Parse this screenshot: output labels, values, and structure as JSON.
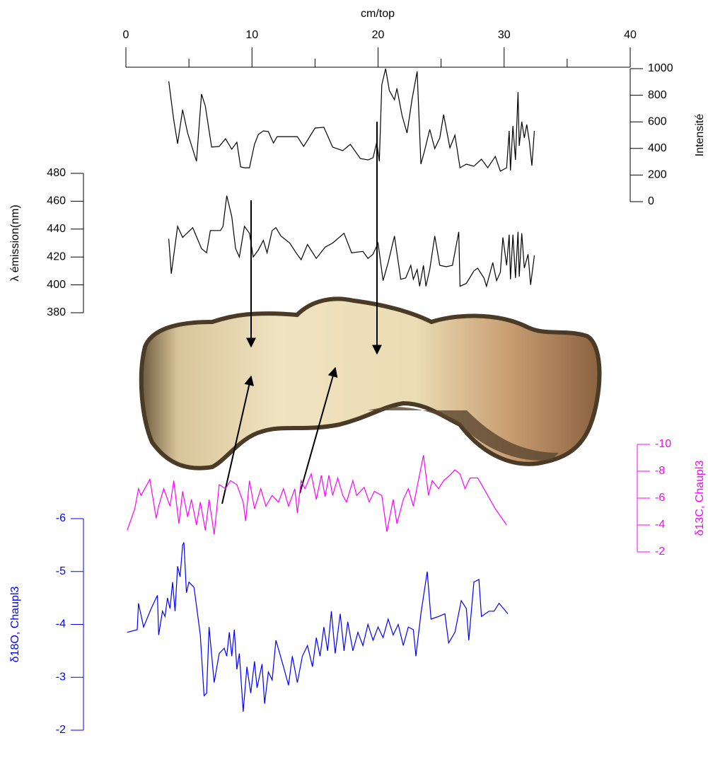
{
  "chart_data": [
    {
      "type": "line",
      "xlabel": "cm/top",
      "xlim": [
        0,
        40
      ],
      "xticks": [
        0,
        10,
        20,
        30,
        40
      ],
      "xminor": [
        5,
        15,
        25,
        35
      ],
      "ylabel": "Intensité",
      "y_axis_side": "right",
      "color": "#000000",
      "ylim": [
        0,
        1000
      ],
      "yticks": [
        0,
        200,
        400,
        600,
        800,
        1000
      ],
      "x": [
        3.4,
        3.8,
        4.1,
        4.5,
        4.9,
        5.6,
        6.0,
        6.3,
        6.8,
        7.4,
        7.9,
        8.4,
        8.8,
        9.1,
        9.4,
        9.8,
        10.2,
        10.5,
        10.9,
        11.3,
        11.7,
        12.0,
        13.0,
        13.6,
        14.1,
        15.0,
        15.7,
        16.4,
        17.2,
        17.8,
        18.6,
        19.2,
        19.6,
        19.9,
        20.1,
        20.3,
        20.6,
        20.9,
        21.3,
        21.5,
        21.9,
        22.3,
        22.7,
        23.1,
        23.4,
        23.7,
        24.1,
        24.5,
        24.9,
        25.2,
        25.7,
        26.1,
        26.5,
        27.0,
        27.6,
        28.2,
        28.7,
        29.3,
        29.7,
        30.2,
        30.4,
        30.5,
        30.7,
        30.9,
        31.1,
        31.2,
        31.4,
        31.6,
        31.8,
        32.0,
        32.2,
        32.4
      ],
      "values": [
        904,
        612,
        436,
        691,
        516,
        303,
        809,
        718,
        410,
        415,
        473,
        394,
        447,
        261,
        255,
        255,
        431,
        505,
        532,
        527,
        441,
        489,
        489,
        489,
        415,
        553,
        559,
        410,
        383,
        431,
        324,
        314,
        330,
        447,
        303,
        878,
        1000,
        835,
        766,
        851,
        649,
        516,
        771,
        979,
        282,
        388,
        543,
        399,
        479,
        654,
        404,
        500,
        255,
        282,
        266,
        319,
        255,
        340,
        229,
        255,
        532,
        234,
        569,
        314,
        824,
        420,
        601,
        479,
        580,
        452,
        271,
        532
      ]
    },
    {
      "type": "line",
      "ylabel": "λ émission(nm)",
      "y_axis_side": "left",
      "color": "#000000",
      "ylim": [
        380,
        480
      ],
      "yticks": [
        380,
        400,
        420,
        440,
        460,
        480
      ],
      "x": [
        3.4,
        3.6,
        4.1,
        4.5,
        5.3,
        6.0,
        6.4,
        6.7,
        7.1,
        7.5,
        7.7,
        8.0,
        8.4,
        8.7,
        9.0,
        9.4,
        9.8,
        10.1,
        10.5,
        10.9,
        11.2,
        11.6,
        11.9,
        12.3,
        13.0,
        13.5,
        13.9,
        14.4,
        15.1,
        15.8,
        16.4,
        17.3,
        17.9,
        18.8,
        19.2,
        19.6,
        20.0,
        20.4,
        20.8,
        21.3,
        21.8,
        22.2,
        22.6,
        22.8,
        23.1,
        23.3,
        23.6,
        23.8,
        24.1,
        24.5,
        24.9,
        25.4,
        25.9,
        26.4,
        26.5,
        27.0,
        27.6,
        27.9,
        28.4,
        28.6,
        29.1,
        29.4,
        29.7,
        29.9,
        30.2,
        30.4,
        30.5,
        30.7,
        30.9,
        31.1,
        31.2,
        31.4,
        31.6,
        31.9,
        32.1,
        32.4
      ],
      "values": [
        433,
        408,
        442,
        434,
        441,
        426,
        423,
        439,
        439,
        439,
        442,
        464,
        449,
        426,
        420,
        442,
        437,
        420,
        425,
        432,
        423,
        439,
        441,
        435,
        430,
        423,
        418,
        429,
        419,
        427,
        430,
        437,
        423,
        424,
        419,
        422,
        430,
        403,
        416,
        435,
        404,
        405,
        414,
        404,
        411,
        399,
        414,
        399,
        411,
        435,
        414,
        413,
        414,
        438,
        399,
        401,
        410,
        412,
        405,
        399,
        416,
        403,
        409,
        434,
        414,
        436,
        404,
        436,
        405,
        438,
        406,
        437,
        412,
        422,
        400,
        421
      ]
    },
    {
      "type": "line",
      "ylabel": "δ13C, Chaupl3",
      "y_axis_side": "right",
      "color": "#ff00ff",
      "ylim": [
        -2,
        -10
      ],
      "yticks": [
        -10,
        -8,
        -6,
        -4,
        -2
      ],
      "x": [
        0.1,
        0.7,
        1.0,
        1.2,
        1.9,
        2.4,
        2.6,
        3.0,
        3.5,
        3.8,
        4.2,
        4.5,
        4.9,
        5.2,
        5.6,
        5.9,
        6.3,
        6.6,
        7.0,
        7.4,
        7.9,
        8.3,
        8.8,
        9.3,
        9.5,
        9.8,
        10.2,
        10.7,
        11.1,
        11.6,
        12.1,
        12.5,
        12.9,
        13.4,
        13.6,
        13.9,
        14.2,
        14.7,
        15.1,
        15.5,
        15.8,
        16.1,
        16.4,
        16.8,
        17.2,
        17.5,
        18.0,
        18.3,
        18.9,
        19.3,
        19.7,
        20.3,
        20.7,
        21.2,
        21.5,
        22.0,
        22.4,
        22.8,
        23.2,
        23.6,
        24.0,
        24.3,
        24.8,
        25.2,
        25.7,
        26.1,
        26.5,
        26.9,
        27.3,
        27.9,
        28.4,
        29.3,
        30.2
      ],
      "values": [
        -3.6,
        -5.2,
        -6.7,
        -6.2,
        -7.4,
        -4.5,
        -5.4,
        -6.7,
        -5.4,
        -7.3,
        -4.1,
        -6.5,
        -4.6,
        -5.9,
        -4.0,
        -5.7,
        -3.6,
        -5.9,
        -3.3,
        -7.0,
        -6.7,
        -7.3,
        -7.0,
        -5.7,
        -4.3,
        -7.3,
        -5.2,
        -6.7,
        -5.4,
        -6.2,
        -5.7,
        -6.7,
        -5.4,
        -6.7,
        -4.9,
        -7.3,
        -6.7,
        -7.8,
        -5.9,
        -7.7,
        -6.1,
        -7.7,
        -6.2,
        -7.5,
        -6.2,
        -5.7,
        -7.3,
        -6.2,
        -6.8,
        -5.7,
        -6.5,
        -6.2,
        -3.5,
        -5.9,
        -4.1,
        -5.9,
        -6.7,
        -5.4,
        -7.3,
        -9.2,
        -6.2,
        -7.3,
        -6.7,
        -7.3,
        -7.7,
        -8.1,
        -7.8,
        -6.7,
        -7.5,
        -7.5,
        -6.7,
        -5.2,
        -4.0
      ]
    },
    {
      "type": "line",
      "ylabel": "δ18O, Chaupl3",
      "y_axis_side": "left",
      "color": "#0000ff",
      "ylim": [
        -2,
        -6
      ],
      "yticks": [
        -6,
        -5,
        -4,
        -3,
        -2
      ],
      "x": [
        0.1,
        0.9,
        1.0,
        1.4,
        2.0,
        2.5,
        2.6,
        2.9,
        3.1,
        3.3,
        3.5,
        3.7,
        3.9,
        4.1,
        4.3,
        4.5,
        4.6,
        4.8,
        5.0,
        5.4,
        5.6,
        5.9,
        6.2,
        6.4,
        6.6,
        7.0,
        7.4,
        7.8,
        8.0,
        8.2,
        8.4,
        8.6,
        8.8,
        9.0,
        9.3,
        9.6,
        9.9,
        10.2,
        10.4,
        10.8,
        11.0,
        11.3,
        11.6,
        11.9,
        12.2,
        12.5,
        12.9,
        13.2,
        13.6,
        14.0,
        14.4,
        14.8,
        15.1,
        15.4,
        15.7,
        16.0,
        16.3,
        16.6,
        17.0,
        17.3,
        17.6,
        18.0,
        18.4,
        18.8,
        19.2,
        19.6,
        20.0,
        20.4,
        20.8,
        21.2,
        21.6,
        22.0,
        22.4,
        22.8,
        23.0,
        23.4,
        23.9,
        24.2,
        24.8,
        25.3,
        25.6,
        26.1,
        26.6,
        27.0,
        27.2,
        27.6,
        28.0,
        28.2,
        28.8,
        29.2,
        29.6,
        30.3
      ],
      "values": [
        -3.85,
        -3.9,
        -4.4,
        -3.95,
        -4.3,
        -4.55,
        -3.8,
        -4.25,
        -4.15,
        -4.5,
        -4.3,
        -4.8,
        -4.25,
        -5.1,
        -4.9,
        -5.5,
        -5.55,
        -4.6,
        -4.8,
        -4.7,
        -4.35,
        -3.8,
        -2.65,
        -2.7,
        -3.95,
        -2.9,
        -3.45,
        -3.55,
        -3.4,
        -3.85,
        -3.4,
        -3.9,
        -3.15,
        -3.45,
        -2.35,
        -3.2,
        -2.7,
        -3.3,
        -2.8,
        -3.25,
        -2.5,
        -3.1,
        -2.95,
        -3.7,
        -3.45,
        -3.2,
        -2.85,
        -3.4,
        -2.9,
        -3.4,
        -3.6,
        -3.2,
        -3.75,
        -3.4,
        -3.95,
        -3.5,
        -4.25,
        -3.45,
        -4.2,
        -3.5,
        -4.05,
        -3.5,
        -3.85,
        -3.6,
        -4.0,
        -3.7,
        -3.95,
        -3.75,
        -4.1,
        -3.8,
        -4.0,
        -3.6,
        -3.95,
        -3.9,
        -3.4,
        -4.2,
        -5.0,
        -4.1,
        -4.15,
        -4.2,
        -3.65,
        -3.85,
        -4.45,
        -4.3,
        -3.7,
        -4.8,
        -4.85,
        -4.15,
        -4.25,
        -4.25,
        -4.4,
        -4.2
      ]
    }
  ]
}
